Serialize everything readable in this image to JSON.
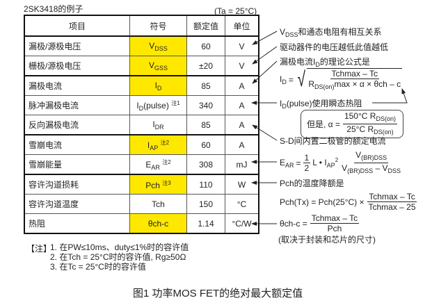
{
  "table_title": "2SK3418的例子",
  "condition": "(Ta = 25°C)",
  "headers": [
    "项目",
    "符号",
    "额定值",
    "单位"
  ],
  "rows": [
    {
      "item": "漏极/源极电压",
      "sym": "V",
      "sub": "DSS",
      "note": "",
      "value": "60",
      "unit": "V",
      "highlight": true
    },
    {
      "item": "栅极/源极电压",
      "sym": "V",
      "sub": "GSS",
      "note": "",
      "value": "±20",
      "unit": "V",
      "highlight": true
    },
    {
      "item": "漏极电流",
      "sym": "I",
      "sub": "D",
      "note": "",
      "value": "85",
      "unit": "A",
      "highlight": true
    },
    {
      "item": "脉冲漏极电流",
      "sym": "I",
      "sub": "D",
      "tail": "(pulse)",
      "note": "注1",
      "value": "340",
      "unit": "A",
      "highlight": false
    },
    {
      "item": "反向漏极电流",
      "sym": "I",
      "sub": "DR",
      "note": "",
      "value": "85",
      "unit": "A",
      "highlight": false
    },
    {
      "item": "雪崩电流",
      "sym": "I",
      "sub": "AP",
      "note": "注2",
      "value": "60",
      "unit": "A",
      "highlight": true
    },
    {
      "item": "雪崩能量",
      "sym": "E",
      "sub": "AR",
      "note": "注2",
      "value": "308",
      "unit": "mJ",
      "highlight": false
    },
    {
      "item": "容许沟道损耗",
      "sym": "Pch",
      "sub": "",
      "note": "注3",
      "value": "110",
      "unit": "W",
      "highlight": true
    },
    {
      "item": "容许沟道温度",
      "sym": "Tch",
      "sub": "",
      "note": "",
      "value": "150",
      "unit": "°C",
      "highlight": false
    },
    {
      "item": "热阻",
      "sym": "θch-c",
      "sub": "",
      "note": "",
      "value": "1.14",
      "unit": "°C/W",
      "highlight": true
    }
  ],
  "highlight_color": "#ffe800",
  "annotations": {
    "a1_pre": "V",
    "a1_sub": "DSS",
    "a1_post": "和通态电阻有相互关系",
    "a2": "驱动器件的电压越低此值越低",
    "a3_pre": "漏极电流I",
    "a3_sub": "D",
    "a3_post": "的理论公式是",
    "id_lhs": "I",
    "id_lhs_sub": "D",
    "eq": "=",
    "id_num": "Tchmax – Tc",
    "id_den_pre": "R",
    "id_den_sub": "DS(on)",
    "id_den_post": "max × α × θch – c",
    "a4_pre": "I",
    "a4_sub": "D",
    "a4_post": "(pulse)使用瞬态热阻",
    "alpha_pre": "但是, α =",
    "alpha_num": "150°C R",
    "alpha_den": "25°C R",
    "alpha_sub": "DS(on)",
    "a5": "S-D间内置二极管的额定电流",
    "ear_lhs": "E",
    "ear_lhs_sub": "AR",
    "ear_half_num": "1",
    "ear_half_den": "2",
    "ear_mid": "L • I",
    "ear_mid_sub": "AP",
    "ear_sq": "2",
    "ear_num_pre": "V",
    "ear_num_sub": "(BR)DSS",
    "ear_den_pre": "V",
    "ear_den_sub": "(BR)DSS",
    "ear_den_mid": " – V",
    "ear_den_sub2": "DSS",
    "a6": "Pch的温度降额是",
    "pch_lhs": "Pch(Tx) = Pch(25°C) ×",
    "pch_num": "Tchmax – Tc",
    "pch_den": "Tchmax – 25",
    "theta_lhs": "θch-c =",
    "theta_num": "Tchmax – Tc",
    "theta_den": "Pch",
    "a7": "(取决于封装和芯片的尺寸)"
  },
  "notes": {
    "label": "【注】",
    "items": [
      "1. 在PW≤10ms、duty≤1%时的容许值",
      "2. 在Tch = 25°C时的容许值, Rg≥50Ω",
      "3. 在Tc = 25°C时的容许值"
    ]
  },
  "caption": "图1  功率MOS FET的绝对最大额定值"
}
